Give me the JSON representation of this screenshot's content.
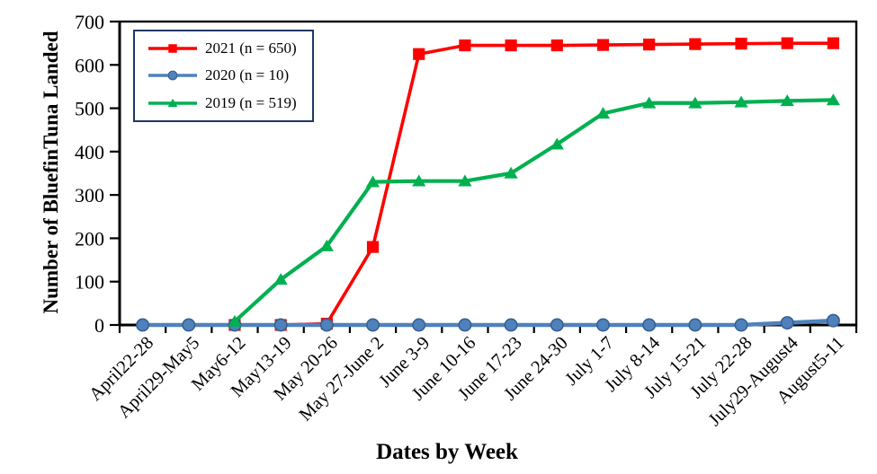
{
  "chart_data": {
    "type": "line",
    "title": "",
    "xlabel": "Dates by Week",
    "ylabel": "Number of BluefinTuna Landed",
    "ylim": [
      0,
      700
    ],
    "y_ticks": [
      0,
      100,
      200,
      300,
      400,
      500,
      600,
      700
    ],
    "grid": false,
    "legend_position": "top-left",
    "legend_border_color": "#1F3864",
    "axis_color": "#000000",
    "categories": [
      "April22-28",
      "April29-May5",
      "May6-12",
      "May13-19",
      "May 20-26",
      "May 27-June 2",
      "June 3-9",
      "June 10-16",
      "June 17-23",
      "June 24-30",
      "July 1-7",
      "July 8-14",
      "July 15-21",
      "July 22-28",
      "July29-August4",
      "August5-11"
    ],
    "series": [
      {
        "name": "2021",
        "label": "2021 (n = 650)",
        "color": "#FF0000",
        "marker": "square",
        "values": [
          null,
          null,
          0,
          0,
          3,
          180,
          625,
          645,
          645,
          645,
          646,
          647,
          648,
          649,
          650,
          650
        ]
      },
      {
        "name": "2020",
        "label": "2020 (n = 10)",
        "color": "#4F81BD",
        "marker": "circle",
        "marker_stroke": "#36618E",
        "values": [
          0,
          0,
          0,
          0,
          0,
          0,
          0,
          0,
          0,
          0,
          0,
          0,
          0,
          0,
          5,
          10
        ]
      },
      {
        "name": "2019",
        "label": "2019 (n = 519)",
        "color": "#00B050",
        "marker": "triangle",
        "values": [
          null,
          null,
          8,
          105,
          182,
          330,
          332,
          332,
          350,
          417,
          488,
          512,
          512,
          514,
          517,
          519
        ]
      }
    ]
  }
}
